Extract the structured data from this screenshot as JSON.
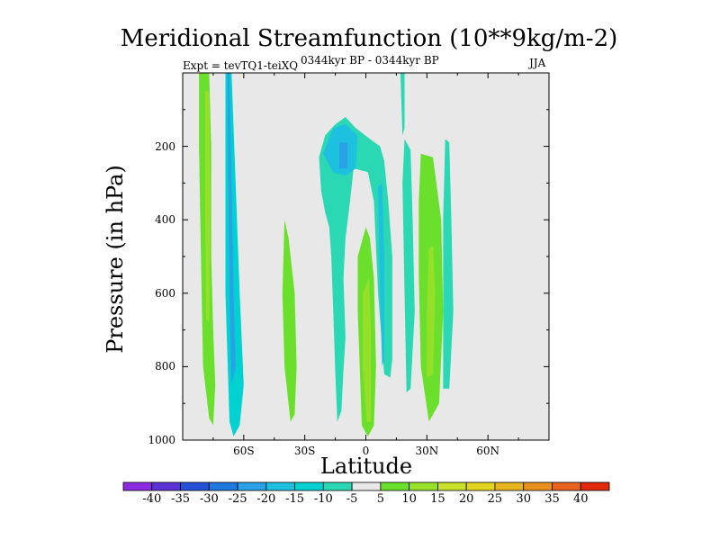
{
  "chart_data": {
    "type": "heatmap",
    "title": "Meridional Streamfunction (10**9kg/m-2)",
    "subtitle": "0344kyr BP - 0344kyr BP",
    "left_annotation": "Expt = tevTQ1-teiXQ",
    "right_annotation": "JJA",
    "xlabel": "Latitude",
    "ylabel": "Pressure (in hPa)",
    "xlim": [
      -90,
      90
    ],
    "ylim": [
      1000,
      0
    ],
    "x_ticks": [
      -60,
      -30,
      0,
      30,
      60
    ],
    "x_tick_labels": [
      "60S",
      "30S",
      "0",
      "30N",
      "60N"
    ],
    "y_ticks": [
      200,
      400,
      600,
      800,
      1000
    ],
    "y_tick_labels": [
      "200",
      "400",
      "600",
      "800",
      "1000"
    ],
    "colorbar": {
      "levels": [
        -40,
        -35,
        -30,
        -25,
        -20,
        -15,
        -10,
        -5,
        5,
        10,
        15,
        20,
        25,
        30,
        35,
        40
      ],
      "labels": [
        "-40",
        "-35",
        "-30",
        "-25",
        "-20",
        "-15",
        "-10",
        "-5",
        "5",
        "10",
        "15",
        "20",
        "25",
        "30",
        "35",
        "40"
      ],
      "colors": [
        "#8a2be2",
        "#5a32d6",
        "#2650d8",
        "#1e78e0",
        "#2aa0e6",
        "#1ec0e0",
        "#00d2d2",
        "#2ad8b4",
        "#e8e8e8",
        "#6ae02c",
        "#96e02a",
        "#c8e02a",
        "#e0d41e",
        "#e8b41e",
        "#e8901e",
        "#e8641e",
        "#e0280a"
      ]
    },
    "regions": [
      {
        "name": "green-band-far-south",
        "value": 7,
        "points": [
          [
            -82,
            0
          ],
          [
            -77,
            0
          ],
          [
            -76,
            200
          ],
          [
            -76,
            500
          ],
          [
            -75,
            700
          ],
          [
            -74,
            850
          ],
          [
            -75,
            960
          ],
          [
            -77,
            940
          ],
          [
            -80,
            800
          ],
          [
            -81,
            500
          ],
          [
            -82,
            200
          ]
        ]
      },
      {
        "name": "yellow-green-core-far-south",
        "value": 12,
        "points": [
          [
            -79,
            50
          ],
          [
            -77,
            50
          ],
          [
            -76.5,
            350
          ],
          [
            -77,
            680
          ],
          [
            -78.5,
            670
          ],
          [
            -79,
            350
          ]
        ]
      },
      {
        "name": "blue-band-south",
        "value": -12,
        "points": [
          [
            -69,
            0
          ],
          [
            -66,
            0
          ],
          [
            -64,
            300
          ],
          [
            -62,
            600
          ],
          [
            -60,
            850
          ],
          [
            -62,
            960
          ],
          [
            -65,
            990
          ],
          [
            -67,
            950
          ],
          [
            -69,
            600
          ]
        ]
      },
      {
        "name": "deep-blue-core-south",
        "value": -22,
        "points": [
          [
            -68,
            0
          ],
          [
            -67,
            0
          ],
          [
            -66,
            300
          ],
          [
            -65,
            600
          ],
          [
            -64,
            800
          ],
          [
            -66,
            850
          ],
          [
            -67,
            600
          ]
        ]
      },
      {
        "name": "green-band-30s",
        "value": 7,
        "points": [
          [
            -40,
            400
          ],
          [
            -38,
            450
          ],
          [
            -35,
            600
          ],
          [
            -34,
            800
          ],
          [
            -35,
            930
          ],
          [
            -37,
            950
          ],
          [
            -40,
            800
          ],
          [
            -41,
            600
          ]
        ]
      },
      {
        "name": "cyan-overturning-cell",
        "value": -7,
        "points": [
          [
            -22,
            320
          ],
          [
            -23,
            230
          ],
          [
            -20,
            170
          ],
          [
            -15,
            140
          ],
          [
            -10,
            120
          ],
          [
            -5,
            150
          ],
          [
            2,
            180
          ],
          [
            7,
            200
          ],
          [
            9,
            240
          ],
          [
            11,
            350
          ],
          [
            13,
            500
          ],
          [
            13,
            780
          ],
          [
            12,
            830
          ],
          [
            9,
            820
          ],
          [
            6,
            600
          ],
          [
            4,
            350
          ],
          [
            1,
            270
          ],
          [
            -6,
            260
          ],
          [
            -8,
            360
          ],
          [
            -10,
            450
          ],
          [
            -11,
            560
          ],
          [
            -10,
            720
          ],
          [
            -11,
            810
          ],
          [
            -12,
            920
          ],
          [
            -14,
            950
          ],
          [
            -15,
            820
          ],
          [
            -16,
            650
          ],
          [
            -17,
            500
          ],
          [
            -18,
            420
          ],
          [
            -20,
            380
          ]
        ]
      },
      {
        "name": "blue-core-upper",
        "value": -17,
        "points": [
          [
            -21,
            220
          ],
          [
            -16,
            150
          ],
          [
            -10,
            140
          ],
          [
            -4,
            170
          ],
          [
            -5,
            260
          ],
          [
            -10,
            280
          ],
          [
            -16,
            270
          ]
        ]
      },
      {
        "name": "darker-blue-center",
        "value": -25,
        "points": [
          [
            -13,
            190
          ],
          [
            -9,
            190
          ],
          [
            -9,
            260
          ],
          [
            -13,
            260
          ]
        ]
      },
      {
        "name": "blue-stripe-rising",
        "value": -17,
        "points": [
          [
            6,
            310
          ],
          [
            8,
            300
          ],
          [
            9,
            500
          ],
          [
            9,
            780
          ],
          [
            8,
            800
          ],
          [
            7,
            600
          ]
        ]
      },
      {
        "name": "green-equatorial-band",
        "value": 7,
        "points": [
          [
            -4,
            500
          ],
          [
            0,
            420
          ],
          [
            2,
            450
          ],
          [
            4,
            560
          ],
          [
            5,
            800
          ],
          [
            4,
            960
          ],
          [
            1,
            990
          ],
          [
            -2,
            960
          ],
          [
            -3,
            800
          ],
          [
            -4,
            650
          ]
        ]
      },
      {
        "name": "yellow-equatorial-core",
        "value": 12,
        "points": [
          [
            -1.5,
            600
          ],
          [
            1.5,
            560
          ],
          [
            2.5,
            700
          ],
          [
            2.5,
            950
          ],
          [
            0.5,
            950
          ],
          [
            -1.5,
            800
          ]
        ]
      },
      {
        "name": "cyan-thin-top-20n",
        "value": -7,
        "points": [
          [
            17,
            0
          ],
          [
            19,
            0
          ],
          [
            19,
            150
          ],
          [
            18,
            170
          ]
        ]
      },
      {
        "name": "cyan-band-20n",
        "value": -7,
        "points": [
          [
            19,
            180
          ],
          [
            22,
            210
          ],
          [
            23,
            400
          ],
          [
            24,
            650
          ],
          [
            22,
            860
          ],
          [
            20,
            870
          ],
          [
            19,
            600
          ],
          [
            18,
            300
          ]
        ]
      },
      {
        "name": "green-band-30n",
        "value": 7,
        "points": [
          [
            27,
            220
          ],
          [
            33,
            230
          ],
          [
            37,
            400
          ],
          [
            38,
            650
          ],
          [
            36,
            900
          ],
          [
            31,
            950
          ],
          [
            27,
            800
          ],
          [
            26,
            550
          ],
          [
            26,
            350
          ]
        ]
      },
      {
        "name": "yellow-green-core-30n",
        "value": 12,
        "points": [
          [
            31,
            480
          ],
          [
            33,
            470
          ],
          [
            34,
            600
          ],
          [
            33,
            820
          ],
          [
            30,
            830
          ],
          [
            30,
            650
          ]
        ]
      },
      {
        "name": "cyan-band-45n",
        "value": -7,
        "points": [
          [
            39,
            180
          ],
          [
            41,
            190
          ],
          [
            42,
            400
          ],
          [
            43,
            650
          ],
          [
            41,
            860
          ],
          [
            38,
            860
          ],
          [
            38,
            650
          ],
          [
            38,
            400
          ]
        ]
      }
    ]
  }
}
